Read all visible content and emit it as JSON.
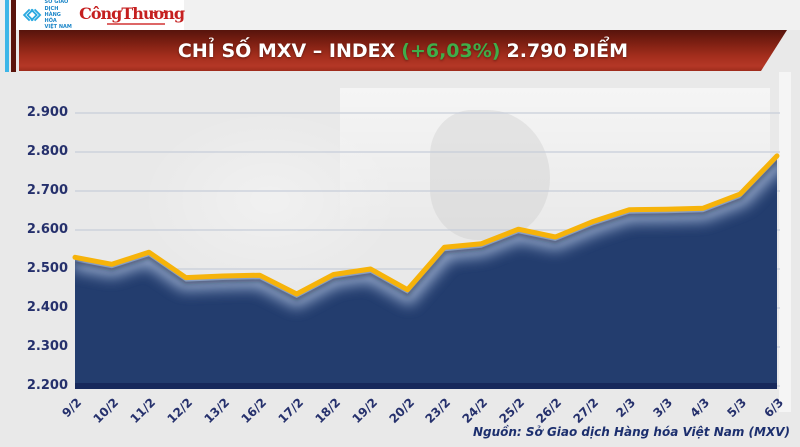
{
  "header": {
    "mxv_logo": {
      "line1": "SỞ GIAO DỊCH",
      "line2": "HÀNG HÓA",
      "line3": "VIỆT NAM"
    },
    "congthuong_logo": "CôngThương"
  },
  "banner": {
    "title_main": "CHỈ SỐ MXV – INDEX",
    "title_change": "(+6,03%)",
    "title_value": "2.790 ĐIỂM"
  },
  "footer": {
    "source": "Nguồn: Sở Giao dịch Hàng hóa Việt Nam (MXV)"
  },
  "colors": {
    "banner_red": "#a52e1d",
    "change_green": "#3fae49",
    "line_gold": "#f6b30a",
    "area_navy": "#233d6e",
    "axis_navy": "#17295b",
    "label_navy": "#25306c",
    "logo_blue": "#2aa9e0",
    "congthuong_red": "#c51f1f"
  },
  "chart_data": {
    "type": "area",
    "title": "CHỈ SỐ MXV – INDEX (+6,03%) 2.790 ĐIỂM",
    "change_label": "+6,03%",
    "latest_value_label": "2.790 ĐIỂM",
    "x": [
      "9/2",
      "10/2",
      "11/2",
      "12/2",
      "13/2",
      "16/2",
      "17/2",
      "18/2",
      "19/2",
      "20/2",
      "23/2",
      "24/2",
      "25/2",
      "26/2",
      "27/2",
      "2/3",
      "3/3",
      "4/3",
      "5/3",
      "6/3"
    ],
    "values": [
      2530,
      2512,
      2543,
      2478,
      2482,
      2484,
      2436,
      2486,
      2500,
      2447,
      2556,
      2565,
      2602,
      2582,
      2621,
      2652,
      2653,
      2656,
      2692,
      2790
    ],
    "ylim": [
      2200,
      2900
    ],
    "yticks": [
      2900,
      2800,
      2700,
      2600,
      2500,
      2400,
      2300,
      2200
    ],
    "ytick_labels": [
      "2.900",
      "2.800",
      "2.700",
      "2.600",
      "2.500",
      "2.400",
      "2.300",
      "2.200"
    ],
    "grid": "horizontal",
    "legend": "none",
    "line_color": "#f6b30a",
    "fill_color": "#233d6e"
  }
}
